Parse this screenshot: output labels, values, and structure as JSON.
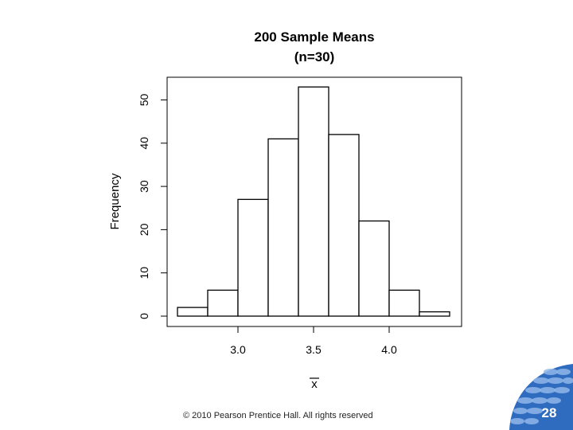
{
  "chart_data": {
    "type": "bar",
    "title": "200 Sample Means",
    "subtitle": "(n=30)",
    "xlabel": "x",
    "xlabel_overbar": true,
    "ylabel": "Frequency",
    "bins": [
      {
        "start": 2.6,
        "end": 2.8,
        "count": 2
      },
      {
        "start": 2.8,
        "end": 3.0,
        "count": 6
      },
      {
        "start": 3.0,
        "end": 3.2,
        "count": 27
      },
      {
        "start": 3.2,
        "end": 3.4,
        "count": 41
      },
      {
        "start": 3.4,
        "end": 3.6,
        "count": 53
      },
      {
        "start": 3.6,
        "end": 3.8,
        "count": 42
      },
      {
        "start": 3.8,
        "end": 4.0,
        "count": 22
      },
      {
        "start": 4.0,
        "end": 4.2,
        "count": 6
      },
      {
        "start": 4.2,
        "end": 4.4,
        "count": 1
      }
    ],
    "x_ticks": [
      "3.0",
      "3.5",
      "4.0"
    ],
    "y_ticks": [
      "0",
      "10",
      "20",
      "30",
      "40",
      "50"
    ],
    "grid": false,
    "colors": {
      "bar_fill": "#ffffff",
      "bar_stroke": "#000000"
    }
  },
  "footer": {
    "copyright": "© 2010 Pearson Prentice Hall. All rights reserved",
    "page_number": "28"
  },
  "colors": {
    "badge": "#2f6bbf",
    "badge_spots": "#8fb6e8"
  }
}
